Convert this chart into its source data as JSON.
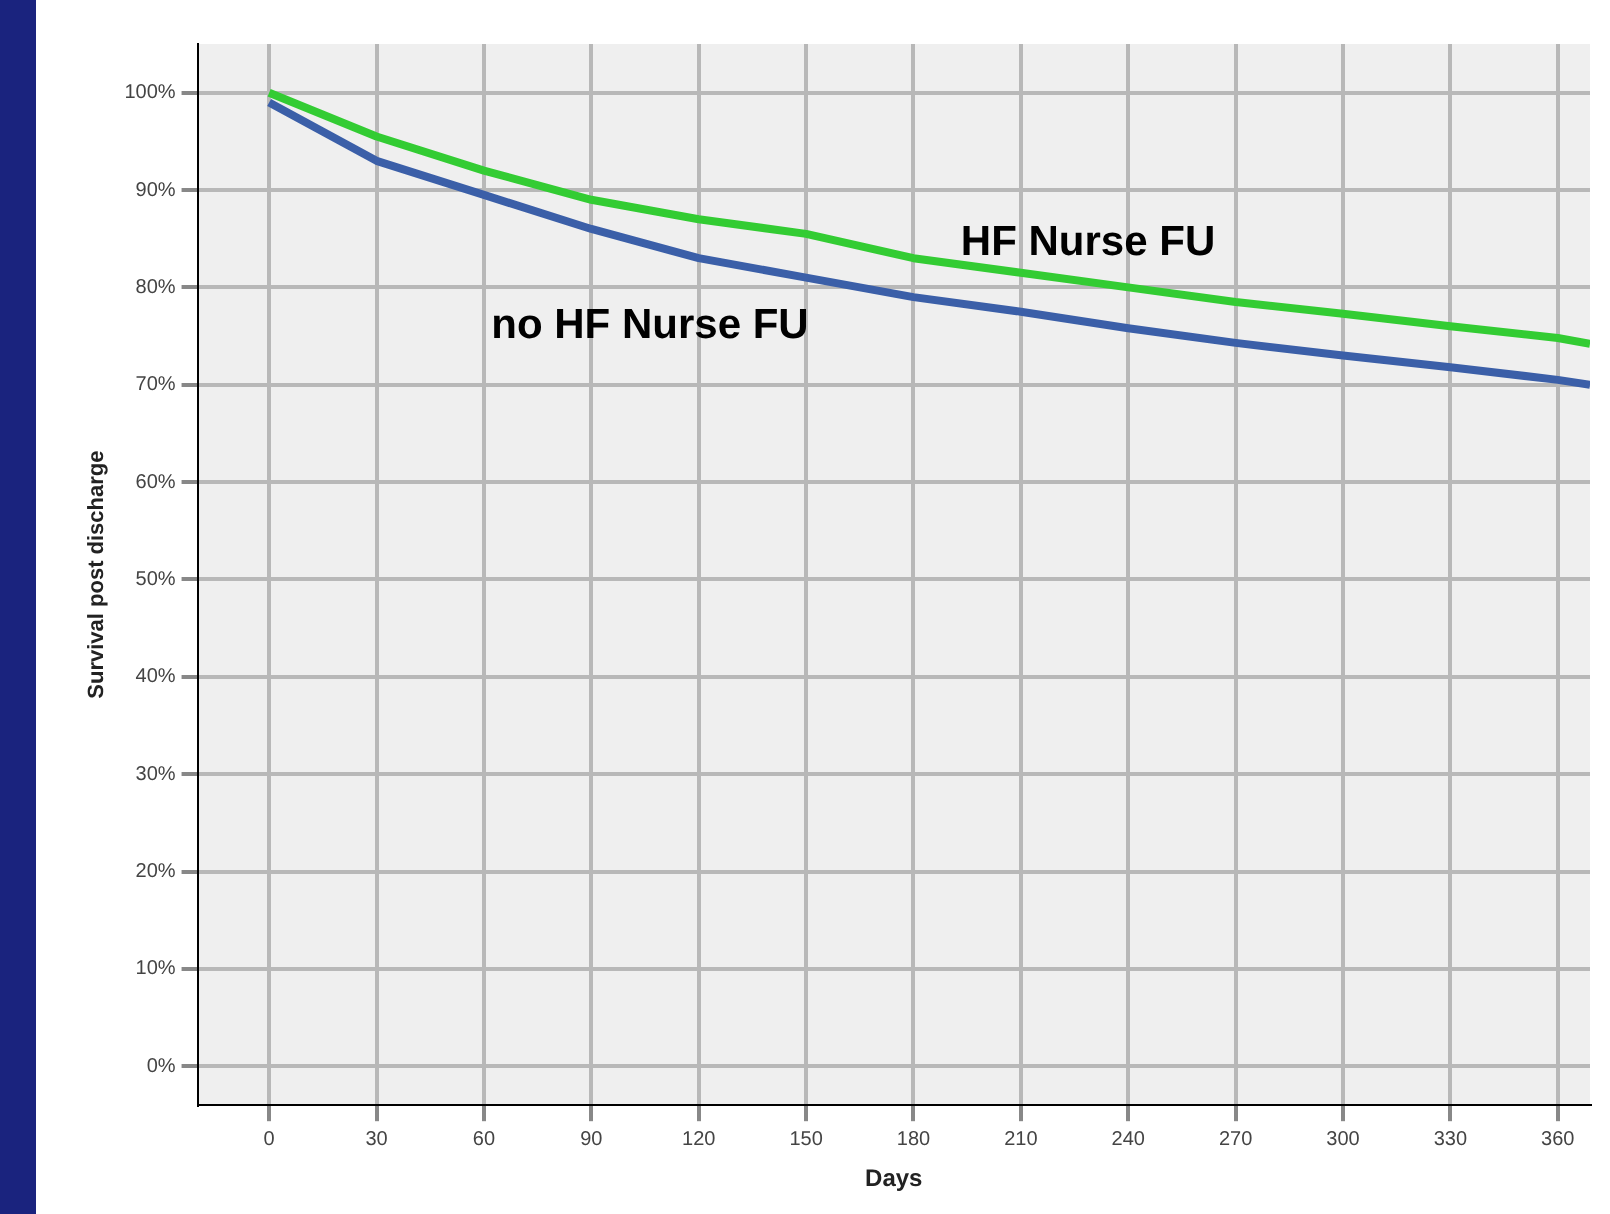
{
  "chart_data": {
    "type": "line",
    "xlabel": "Days",
    "ylabel": "Survival post discharge",
    "x": [
      0,
      30,
      60,
      90,
      120,
      150,
      180,
      210,
      240,
      270,
      300,
      330,
      360,
      369
    ],
    "series": [
      {
        "name": "HF Nurse FU",
        "color": "#33cc33",
        "values": [
          100,
          95.5,
          92,
          89,
          87,
          85.5,
          83,
          81.5,
          80,
          78.5,
          77.3,
          76,
          74.8,
          74.2
        ]
      },
      {
        "name": "no HF Nurse FU",
        "color": "#3b5fa8",
        "values": [
          99,
          93,
          89.5,
          86,
          83,
          81,
          79,
          77.5,
          75.8,
          74.3,
          73,
          71.8,
          70.5,
          70
        ]
      }
    ],
    "xlim": [
      -20,
      369
    ],
    "xticks": [
      0,
      30,
      60,
      90,
      120,
      150,
      180,
      210,
      240,
      270,
      300,
      330,
      360
    ],
    "ylim": [
      -4,
      105
    ],
    "yticks": [
      {
        "value": 0,
        "label": "0%"
      },
      {
        "value": 10,
        "label": "10%"
      },
      {
        "value": 20,
        "label": "20%"
      },
      {
        "value": 30,
        "label": "30%"
      },
      {
        "value": 40,
        "label": "40%"
      },
      {
        "value": 50,
        "label": "50%"
      },
      {
        "value": 60,
        "label": "60%"
      },
      {
        "value": 70,
        "label": "70%"
      },
      {
        "value": 80,
        "label": "80%"
      },
      {
        "value": 90,
        "label": "90%"
      },
      {
        "value": 100,
        "label": "100%"
      }
    ],
    "grid": true,
    "marker": "none",
    "line_style": "solid",
    "legend": false
  }
}
